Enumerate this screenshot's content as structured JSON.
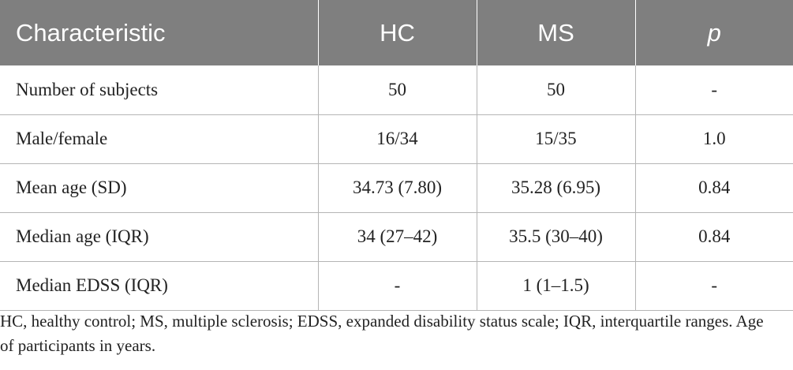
{
  "table": {
    "headers": [
      "Characteristic",
      "HC",
      "MS",
      "p"
    ],
    "rows": [
      [
        "Number of subjects",
        "50",
        "50",
        "-"
      ],
      [
        "Male/female",
        "16/34",
        "15/35",
        "1.0"
      ],
      [
        "Mean age (SD)",
        "34.73 (7.80)",
        "35.28 (6.95)",
        "0.84"
      ],
      [
        "Median age (IQR)",
        "34 (27–42)",
        "35.5 (30–40)",
        "0.84"
      ],
      [
        "Median EDSS (IQR)",
        "-",
        "1 (1–1.5)",
        "-"
      ]
    ]
  },
  "footnote": {
    "text": "HC, healthy control; MS, multiple sclerosis; EDSS, expanded disability status scale; IQR, interquartile ranges. Age of participants in years."
  },
  "colors": {
    "header_background": "#7f7f7f",
    "header_text": "#ffffff",
    "rule": "#b5b5b5",
    "body_text": "#222222"
  }
}
